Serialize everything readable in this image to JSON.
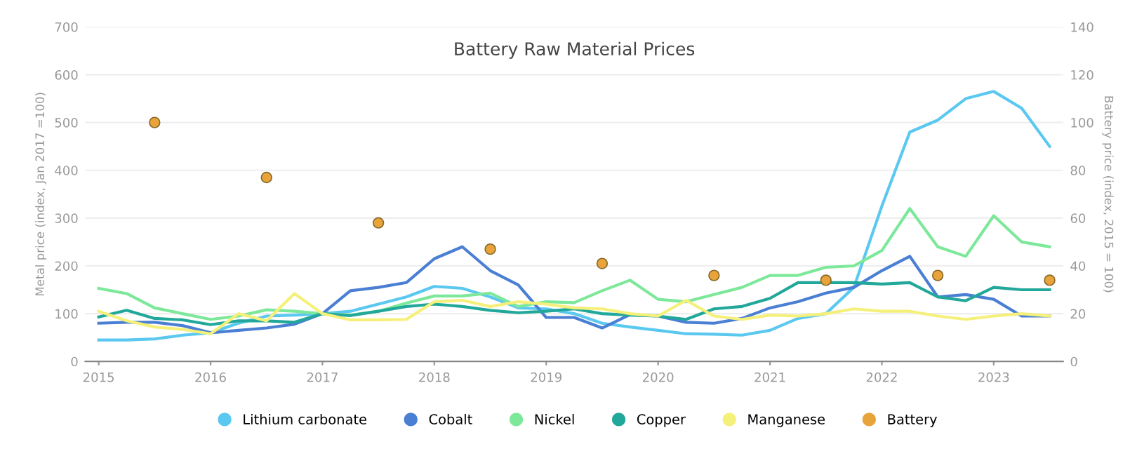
{
  "chart_data": {
    "type": "line",
    "title": "Battery Raw Material Prices",
    "ylabel": "Metal price (index, Jan 2017 =100)",
    "y2label": "Battery price (index, 2015 = 100)",
    "x": [
      2015,
      2015.25,
      2015.5,
      2015.75,
      2016,
      2016.25,
      2016.5,
      2016.75,
      2017,
      2017.25,
      2017.5,
      2017.75,
      2018,
      2018.25,
      2018.5,
      2018.75,
      2019,
      2019.25,
      2019.5,
      2019.75,
      2020,
      2020.25,
      2020.5,
      2020.75,
      2021,
      2021.25,
      2021.5,
      2021.75,
      2022,
      2022.25,
      2022.5,
      2022.75,
      2023,
      2023.25,
      2023.5
    ],
    "series": [
      {
        "name": "Lithium carbonate",
        "color": "#5bc8f0",
        "values": [
          45,
          45,
          47,
          55,
          60,
          80,
          95,
          97,
          100,
          105,
          120,
          135,
          157,
          153,
          135,
          112,
          110,
          100,
          80,
          72,
          65,
          58,
          57,
          55,
          65,
          90,
          100,
          155,
          325,
          480,
          505,
          550,
          565,
          530,
          450
        ]
      },
      {
        "name": "Cobalt",
        "color": "#4a7fd4",
        "values": [
          80,
          82,
          82,
          75,
          60,
          65,
          70,
          78,
          100,
          148,
          155,
          165,
          215,
          240,
          190,
          160,
          92,
          92,
          70,
          98,
          95,
          82,
          80,
          90,
          112,
          125,
          143,
          155,
          190,
          220,
          135,
          140,
          130,
          95,
          95
        ]
      },
      {
        "name": "Nickel",
        "color": "#7de89a",
        "values": [
          153,
          142,
          112,
          100,
          88,
          95,
          108,
          105,
          100,
          97,
          105,
          122,
          137,
          137,
          143,
          115,
          125,
          123,
          148,
          170,
          130,
          125,
          140,
          155,
          180,
          180,
          197,
          200,
          232,
          320,
          240,
          220,
          305,
          250,
          240
        ]
      },
      {
        "name": "Copper",
        "color": "#22a89a",
        "values": [
          93,
          107,
          90,
          87,
          77,
          85,
          85,
          82,
          100,
          96,
          105,
          115,
          120,
          115,
          107,
          102,
          105,
          110,
          100,
          97,
          95,
          88,
          110,
          115,
          132,
          165,
          165,
          165,
          162,
          165,
          135,
          127,
          155,
          150,
          150
        ]
      },
      {
        "name": "Manganese",
        "color": "#f5f07a",
        "values": [
          105,
          85,
          72,
          67,
          58,
          100,
          85,
          142,
          100,
          87,
          87,
          88,
          125,
          128,
          115,
          125,
          120,
          112,
          110,
          100,
          95,
          128,
          95,
          88,
          97,
          95,
          100,
          110,
          105,
          105,
          95,
          88,
          95,
          100,
          95
        ]
      },
      {
        "name": "Battery",
        "color": "#e8a33a",
        "type": "scatter",
        "axis": "y2",
        "marker": "circle",
        "x": [
          2015.5,
          2016.5,
          2017.5,
          2018.5,
          2019.5,
          2020.5,
          2021.5,
          2022.5,
          2023.5
        ],
        "values": [
          100,
          77,
          58,
          47,
          41,
          36,
          34,
          36,
          34
        ]
      }
    ],
    "xlim": [
      2014.88,
      2023.62
    ],
    "xticks": [
      2015,
      2016,
      2017,
      2018,
      2019,
      2020,
      2021,
      2022,
      2023
    ],
    "ylim": [
      0,
      700
    ],
    "yticks": [
      0,
      100,
      200,
      300,
      400,
      500,
      600,
      700
    ],
    "y2lim": [
      0,
      140
    ],
    "y2ticks": [
      0,
      20,
      40,
      60,
      80,
      100,
      120,
      140
    ],
    "grid": "y",
    "legend": "bottom",
    "marker": "none"
  }
}
